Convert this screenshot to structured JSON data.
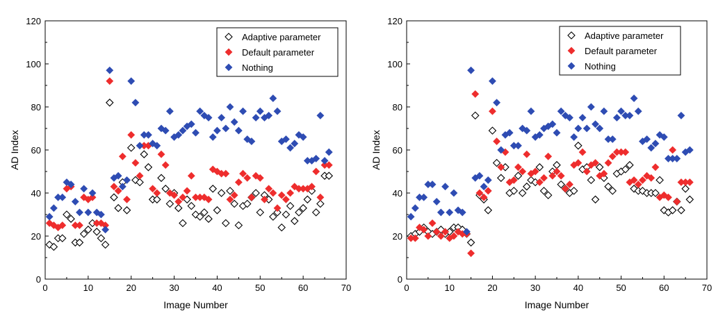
{
  "chart_data": [
    {
      "type": "scatter",
      "xlabel": "Image Number",
      "ylabel": "AD Index",
      "xlim": [
        0,
        70
      ],
      "ylim": [
        0,
        120
      ],
      "xticks": [
        "0",
        "10",
        "20",
        "30",
        "40",
        "50",
        "60",
        "70"
      ],
      "yticks": [
        "0",
        "20",
        "40",
        "60",
        "80",
        "100",
        "120"
      ],
      "legend_position": "top-right",
      "grid": false,
      "series": [
        {
          "name": "Adaptive parameter",
          "marker": "hollow-diamond",
          "color": "#000000",
          "x": [
            1,
            2,
            3,
            4,
            5,
            6,
            7,
            8,
            9,
            10,
            11,
            12,
            13,
            14,
            15,
            16,
            17,
            18,
            19,
            20,
            21,
            22,
            23,
            24,
            25,
            26,
            27,
            28,
            29,
            30,
            31,
            32,
            33,
            34,
            35,
            36,
            37,
            38,
            39,
            40,
            41,
            42,
            43,
            44,
            45,
            46,
            47,
            48,
            49,
            50,
            51,
            52,
            53,
            54,
            55,
            56,
            57,
            58,
            59,
            60,
            61,
            62,
            63,
            64,
            65,
            66
          ],
          "y": [
            16,
            15,
            19,
            19,
            30,
            28,
            17,
            17,
            21,
            23,
            26,
            22,
            19,
            16,
            82,
            38,
            33,
            45,
            32,
            61,
            46,
            45,
            58,
            52,
            37,
            37,
            47,
            42,
            35,
            40,
            33,
            26,
            37,
            34,
            30,
            29,
            31,
            28,
            42,
            32,
            40,
            26,
            41,
            35,
            25,
            34,
            35,
            38,
            40,
            31,
            39,
            37,
            29,
            31,
            24,
            30,
            34,
            27,
            31,
            33,
            37,
            41,
            31,
            35,
            48,
            48
          ]
        },
        {
          "name": "Default parameter",
          "marker": "filled-diamond",
          "color": "#ee2d2d",
          "x": [
            1,
            2,
            3,
            4,
            5,
            6,
            7,
            8,
            9,
            10,
            11,
            12,
            13,
            14,
            15,
            16,
            17,
            18,
            19,
            20,
            21,
            22,
            23,
            24,
            25,
            26,
            27,
            28,
            29,
            30,
            31,
            32,
            33,
            34,
            35,
            36,
            37,
            38,
            39,
            40,
            41,
            42,
            43,
            44,
            45,
            46,
            47,
            48,
            49,
            50,
            51,
            52,
            53,
            54,
            55,
            56,
            57,
            58,
            59,
            60,
            61,
            62,
            63,
            64,
            65,
            66
          ],
          "y": [
            26,
            25,
            24,
            25,
            42,
            43,
            25,
            25,
            38,
            37,
            38,
            26,
            26,
            25,
            92,
            43,
            41,
            57,
            37,
            67,
            54,
            48,
            62,
            62,
            42,
            40,
            58,
            53,
            40,
            39,
            36,
            38,
            41,
            48,
            38,
            38,
            38,
            37,
            51,
            50,
            49,
            49,
            37,
            39,
            45,
            49,
            47,
            38,
            48,
            47,
            37,
            42,
            40,
            33,
            39,
            37,
            40,
            43,
            42,
            42,
            42,
            43,
            50,
            38,
            53,
            53
          ]
        },
        {
          "name": "Nothing",
          "marker": "filled-diamond",
          "color": "#2e4cb3",
          "x": [
            1,
            2,
            3,
            4,
            5,
            6,
            7,
            8,
            9,
            10,
            11,
            12,
            13,
            14,
            15,
            16,
            17,
            18,
            19,
            20,
            21,
            22,
            23,
            24,
            25,
            26,
            27,
            28,
            29,
            30,
            31,
            32,
            33,
            34,
            35,
            36,
            37,
            38,
            39,
            40,
            41,
            42,
            43,
            44,
            45,
            46,
            47,
            48,
            49,
            50,
            51,
            52,
            53,
            54,
            55,
            56,
            57,
            58,
            59,
            60,
            61,
            62,
            63,
            64,
            65,
            66
          ],
          "y": [
            29,
            33,
            38,
            38,
            45,
            44,
            36,
            31,
            42,
            31,
            40,
            31,
            30,
            23,
            97,
            47,
            48,
            43,
            46,
            92,
            82,
            62,
            67,
            67,
            63,
            62,
            70,
            69,
            78,
            66,
            67,
            69,
            71,
            72,
            68,
            78,
            76,
            75,
            66,
            69,
            75,
            70,
            80,
            73,
            69,
            78,
            65,
            64,
            75,
            78,
            75,
            76,
            84,
            78,
            64,
            65,
            61,
            63,
            67,
            66,
            55,
            55,
            56,
            76,
            55,
            59
          ]
        }
      ]
    },
    {
      "type": "scatter",
      "xlabel": "Image Number",
      "ylabel": "AD Index",
      "xlim": [
        0,
        70
      ],
      "ylim": [
        0,
        120
      ],
      "xticks": [
        "0",
        "10",
        "20",
        "30",
        "40",
        "50",
        "60",
        "70"
      ],
      "yticks": [
        "0",
        "20",
        "40",
        "60",
        "80",
        "100",
        "120"
      ],
      "legend_position": "top-right",
      "grid": false,
      "series": [
        {
          "name": "Adaptive parameter",
          "marker": "hollow-diamond",
          "color": "#000000",
          "x": [
            1,
            2,
            3,
            4,
            5,
            6,
            7,
            8,
            9,
            10,
            11,
            12,
            13,
            14,
            15,
            16,
            17,
            18,
            19,
            20,
            21,
            22,
            23,
            24,
            25,
            26,
            27,
            28,
            29,
            30,
            31,
            32,
            33,
            34,
            35,
            36,
            37,
            38,
            39,
            40,
            41,
            42,
            43,
            44,
            45,
            46,
            47,
            48,
            49,
            50,
            51,
            52,
            53,
            54,
            55,
            56,
            57,
            58,
            59,
            60,
            61,
            62,
            63,
            64,
            65,
            66
          ],
          "y": [
            20,
            21,
            22,
            24,
            22,
            21,
            22,
            23,
            21,
            22,
            24,
            24,
            23,
            21,
            17,
            76,
            39,
            37,
            32,
            69,
            54,
            47,
            52,
            40,
            41,
            48,
            40,
            43,
            46,
            45,
            52,
            41,
            39,
            50,
            53,
            44,
            42,
            40,
            41,
            62,
            51,
            52,
            46,
            37,
            52,
            47,
            43,
            41,
            49,
            50,
            51,
            53,
            42,
            41,
            41,
            40,
            40,
            40,
            46,
            32,
            31,
            32,
            36,
            32,
            42,
            37
          ]
        },
        {
          "name": "Default parameter",
          "marker": "filled-diamond",
          "color": "#ee2d2d",
          "x": [
            1,
            2,
            3,
            4,
            5,
            6,
            7,
            8,
            9,
            10,
            11,
            12,
            13,
            14,
            15,
            16,
            17,
            18,
            19,
            20,
            21,
            22,
            23,
            24,
            25,
            26,
            27,
            28,
            29,
            30,
            31,
            32,
            33,
            34,
            35,
            36,
            37,
            38,
            39,
            40,
            41,
            42,
            43,
            44,
            45,
            46,
            47,
            48,
            49,
            50,
            51,
            52,
            53,
            54,
            55,
            56,
            57,
            58,
            59,
            60,
            61,
            62,
            63,
            64,
            65,
            66
          ],
          "y": [
            19,
            19,
            24,
            23,
            20,
            26,
            22,
            20,
            22,
            19,
            20,
            22,
            21,
            21,
            12,
            86,
            40,
            38,
            41,
            78,
            64,
            52,
            59,
            45,
            46,
            52,
            50,
            58,
            49,
            50,
            45,
            47,
            57,
            48,
            50,
            48,
            42,
            44,
            53,
            54,
            59,
            50,
            53,
            54,
            48,
            49,
            54,
            57,
            59,
            59,
            59,
            45,
            46,
            44,
            46,
            48,
            47,
            52,
            38,
            39,
            38,
            60,
            36,
            45,
            45,
            45
          ]
        },
        {
          "name": "Nothing",
          "marker": "filled-diamond",
          "color": "#2e4cb3",
          "x": [
            1,
            2,
            3,
            4,
            5,
            6,
            7,
            8,
            9,
            10,
            11,
            12,
            13,
            14,
            15,
            16,
            17,
            18,
            19,
            20,
            21,
            22,
            23,
            24,
            25,
            26,
            27,
            28,
            29,
            30,
            31,
            32,
            33,
            34,
            35,
            36,
            37,
            38,
            39,
            40,
            41,
            42,
            43,
            44,
            45,
            46,
            47,
            48,
            49,
            50,
            51,
            52,
            53,
            54,
            55,
            56,
            57,
            58,
            59,
            60,
            61,
            62,
            63,
            64,
            65,
            66
          ],
          "y": [
            29,
            33,
            38,
            38,
            44,
            44,
            36,
            31,
            43,
            31,
            40,
            32,
            31,
            22,
            97,
            47,
            48,
            43,
            46,
            92,
            82,
            60,
            67,
            68,
            62,
            62,
            70,
            69,
            78,
            66,
            67,
            70,
            71,
            72,
            68,
            78,
            76,
            75,
            66,
            70,
            75,
            70,
            80,
            72,
            70,
            78,
            65,
            65,
            75,
            78,
            76,
            76,
            84,
            78,
            64,
            65,
            61,
            63,
            67,
            66,
            56,
            56,
            56,
            76,
            59,
            60
          ]
        }
      ]
    }
  ]
}
